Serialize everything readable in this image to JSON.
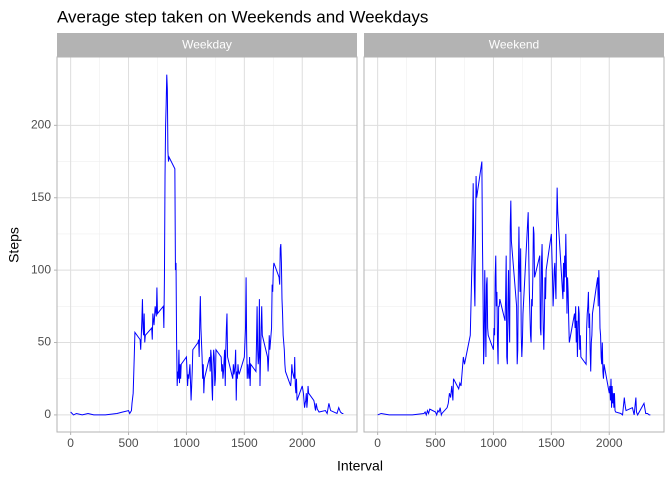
{
  "chart_data": {
    "type": "line",
    "title": "Average step taken on Weekends and Weekdays",
    "x_label": "Interval",
    "y_label": "Steps",
    "color": "#0000ff",
    "grid": true,
    "xlim": [
      -117.75,
      2472.75
    ],
    "ylim": [
      -11.8,
      247.2
    ],
    "xticks": [
      0,
      500,
      1000,
      1500,
      2000
    ],
    "yticks": [
      0,
      50,
      100,
      150,
      200
    ],
    "panels": [
      {
        "name": "Weekday",
        "x": [
          0,
          25,
          50,
          100,
          150,
          200,
          300,
          400,
          450,
          500,
          510,
          525,
          530,
          540,
          550,
          555,
          600,
          605,
          615,
          620,
          625,
          630,
          635,
          640,
          645,
          700,
          705,
          710,
          720,
          730,
          740,
          745,
          750,
          800,
          805,
          810,
          815,
          820,
          825,
          830,
          835,
          840,
          845,
          850,
          900,
          905,
          910,
          915,
          920,
          925,
          930,
          935,
          940,
          945,
          950,
          955,
          1000,
          1010,
          1015,
          1020,
          1030,
          1040,
          1045,
          1050,
          1055,
          1100,
          1105,
          1110,
          1115,
          1120,
          1125,
          1130,
          1135,
          1140,
          1145,
          1150,
          1155,
          1200,
          1205,
          1210,
          1215,
          1220,
          1225,
          1230,
          1235,
          1240,
          1245,
          1250,
          1255,
          1300,
          1305,
          1310,
          1315,
          1320,
          1330,
          1335,
          1340,
          1345,
          1350,
          1355,
          1400,
          1405,
          1410,
          1415,
          1420,
          1425,
          1430,
          1435,
          1440,
          1445,
          1450,
          1455,
          1500,
          1510,
          1515,
          1520,
          1525,
          1530,
          1535,
          1540,
          1545,
          1550,
          1555,
          1600,
          1605,
          1610,
          1615,
          1620,
          1625,
          1630,
          1635,
          1640,
          1645,
          1650,
          1655,
          1700,
          1705,
          1710,
          1715,
          1720,
          1730,
          1735,
          1740,
          1745,
          1750,
          1755,
          1800,
          1805,
          1810,
          1815,
          1820,
          1825,
          1830,
          1835,
          1840,
          1845,
          1850,
          1855,
          1900,
          1905,
          1910,
          1915,
          1930,
          1935,
          1940,
          1945,
          1950,
          1955,
          2000,
          2010,
          2015,
          2020,
          2025,
          2030,
          2035,
          2040,
          2045,
          2050,
          2055,
          2100,
          2105,
          2110,
          2115,
          2120,
          2130,
          2145,
          2200,
          2215,
          2230,
          2245,
          2300,
          2315,
          2330,
          2345,
          2355
        ],
        "values": [
          2,
          0,
          1,
          0,
          1,
          0,
          0,
          1,
          2,
          3,
          1,
          3,
          8,
          15,
          42,
          57,
          52,
          45,
          65,
          80,
          60,
          55,
          70,
          50,
          55,
          60,
          52,
          70,
          62,
          75,
          68,
          88,
          70,
          75,
          60,
          95,
          165,
          200,
          215,
          235,
          225,
          182,
          175,
          178,
          170,
          100,
          105,
          50,
          20,
          30,
          25,
          45,
          22,
          35,
          25,
          35,
          40,
          20,
          28,
          25,
          35,
          10,
          20,
          30,
          45,
          50,
          52,
          40,
          65,
          82,
          60,
          50,
          40,
          25,
          35,
          15,
          25,
          40,
          30,
          45,
          40,
          20,
          10,
          35,
          45,
          40,
          20,
          25,
          45,
          40,
          30,
          35,
          25,
          30,
          45,
          20,
          45,
          60,
          70,
          40,
          25,
          35,
          28,
          30,
          35,
          45,
          10,
          30,
          25,
          35,
          30,
          28,
          40,
          60,
          95,
          50,
          25,
          35,
          30,
          25,
          40,
          20,
          35,
          30,
          50,
          75,
          45,
          35,
          40,
          80,
          20,
          40,
          60,
          75,
          55,
          40,
          30,
          40,
          55,
          45,
          55,
          60,
          90,
          85,
          100,
          105,
          95,
          90,
          115,
          118,
          105,
          80,
          70,
          55,
          50,
          45,
          35,
          30,
          20,
          25,
          35,
          30,
          25,
          40,
          20,
          15,
          25,
          10,
          20,
          15,
          10,
          5,
          8,
          10,
          15,
          5,
          10,
          20,
          15,
          10,
          8,
          5,
          3,
          8,
          4,
          2,
          3,
          1,
          8,
          3,
          1,
          5,
          2,
          1,
          1
        ]
      },
      {
        "name": "Weekend",
        "x": [
          0,
          30,
          100,
          200,
          300,
          400,
          410,
          420,
          430,
          440,
          450,
          500,
          510,
          520,
          530,
          540,
          550,
          555,
          600,
          610,
          620,
          630,
          640,
          650,
          655,
          700,
          710,
          720,
          730,
          740,
          750,
          800,
          810,
          820,
          825,
          830,
          835,
          840,
          850,
          855,
          900,
          905,
          910,
          915,
          920,
          925,
          930,
          935,
          940,
          945,
          950,
          955,
          1000,
          1005,
          1010,
          1015,
          1020,
          1025,
          1030,
          1035,
          1040,
          1045,
          1050,
          1055,
          1100,
          1105,
          1110,
          1115,
          1120,
          1125,
          1130,
          1135,
          1140,
          1145,
          1150,
          1155,
          1200,
          1205,
          1210,
          1215,
          1220,
          1225,
          1230,
          1235,
          1240,
          1245,
          1250,
          1255,
          1300,
          1305,
          1310,
          1315,
          1320,
          1325,
          1330,
          1335,
          1340,
          1345,
          1350,
          1355,
          1400,
          1405,
          1410,
          1415,
          1420,
          1425,
          1430,
          1435,
          1440,
          1445,
          1450,
          1455,
          1500,
          1505,
          1510,
          1515,
          1520,
          1525,
          1530,
          1535,
          1540,
          1545,
          1550,
          1555,
          1600,
          1605,
          1610,
          1615,
          1620,
          1625,
          1630,
          1635,
          1640,
          1645,
          1650,
          1655,
          1700,
          1705,
          1710,
          1715,
          1720,
          1725,
          1730,
          1735,
          1740,
          1745,
          1750,
          1755,
          1800,
          1805,
          1810,
          1815,
          1820,
          1825,
          1830,
          1835,
          1840,
          1845,
          1850,
          1855,
          1900,
          1905,
          1910,
          1915,
          1920,
          1925,
          1930,
          1935,
          1940,
          1945,
          1950,
          1955,
          2000,
          2005,
          2010,
          2015,
          2020,
          2025,
          2030,
          2035,
          2040,
          2045,
          2050,
          2055,
          2100,
          2115,
          2130,
          2135,
          2140,
          2145,
          2200,
          2215,
          2230,
          2235,
          2245,
          2300,
          2315,
          2330,
          2345,
          2355
        ],
        "values": [
          0,
          1,
          0,
          0,
          0,
          1,
          2,
          0,
          3,
          1,
          4,
          2,
          0,
          3,
          2,
          5,
          0,
          1,
          5,
          8,
          15,
          12,
          20,
          10,
          25,
          18,
          22,
          20,
          30,
          40,
          35,
          55,
          90,
          125,
          160,
          120,
          90,
          75,
          165,
          150,
          175,
          120,
          85,
          35,
          50,
          100,
          65,
          40,
          90,
          95,
          60,
          55,
          45,
          60,
          55,
          95,
          110,
          75,
          85,
          50,
          35,
          75,
          75,
          80,
          65,
          80,
          110,
          40,
          35,
          75,
          100,
          65,
          50,
          130,
          148,
          120,
          75,
          35,
          45,
          95,
          130,
          100,
          85,
          115,
          55,
          40,
          50,
          70,
          140,
          110,
          85,
          70,
          55,
          50,
          80,
          75,
          95,
          130,
          125,
          95,
          110,
          60,
          55,
          105,
          118,
          85,
          60,
          45,
          65,
          95,
          80,
          100,
          125,
          110,
          95,
          75,
          85,
          100,
          105,
          90,
          80,
          130,
          157,
          140,
          80,
          105,
          85,
          110,
          95,
          125,
          100,
          70,
          95,
          85,
          65,
          50,
          70,
          60,
          75,
          50,
          65,
          40,
          55,
          75,
          70,
          45,
          55,
          40,
          35,
          60,
          70,
          75,
          85,
          60,
          70,
          45,
          30,
          50,
          55,
          70,
          95,
          75,
          100,
          85,
          60,
          55,
          40,
          35,
          50,
          30,
          25,
          35,
          15,
          20,
          10,
          25,
          5,
          20,
          8,
          15,
          5,
          15,
          3,
          2,
          1,
          0,
          12,
          8,
          5,
          3,
          5,
          0,
          12,
          2,
          0,
          8,
          1,
          1,
          0,
          0
        ]
      }
    ]
  }
}
